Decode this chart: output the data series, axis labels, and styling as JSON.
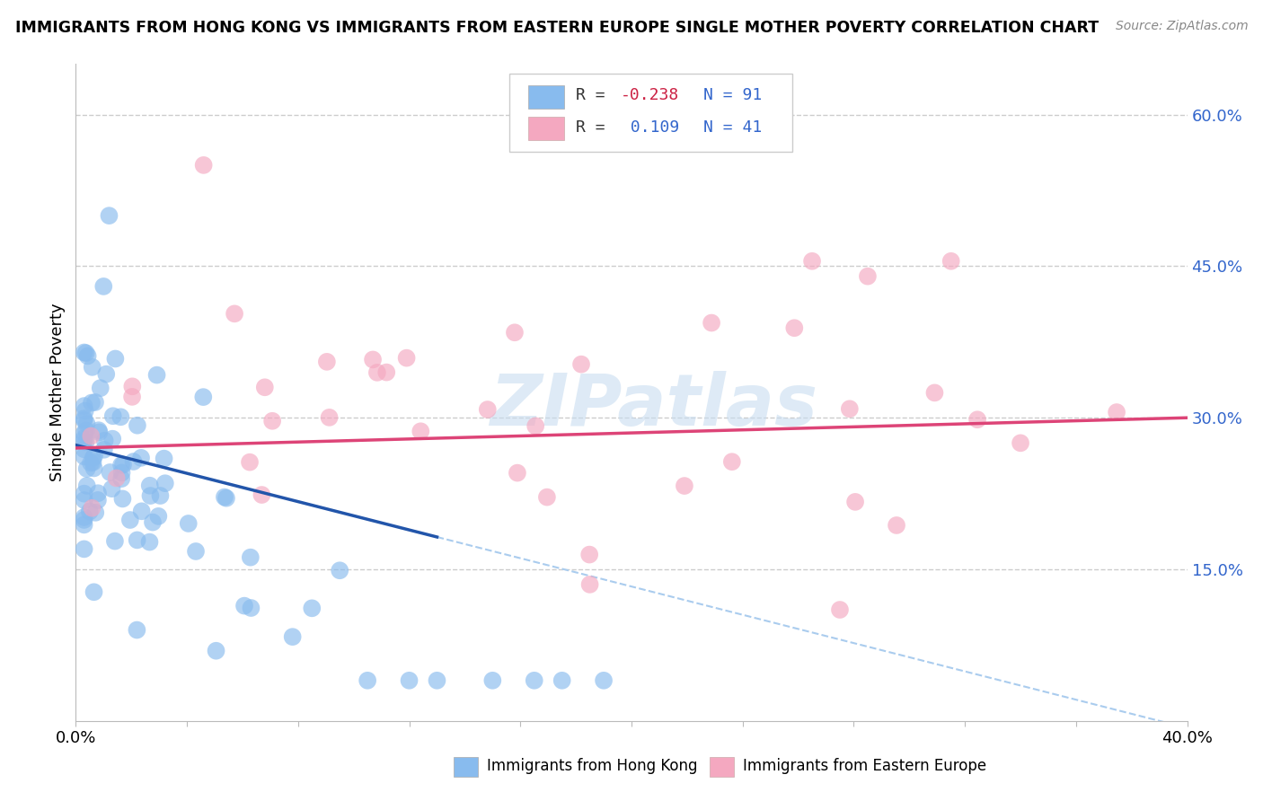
{
  "title": "IMMIGRANTS FROM HONG KONG VS IMMIGRANTS FROM EASTERN EUROPE SINGLE MOTHER POVERTY CORRELATION CHART",
  "source": "Source: ZipAtlas.com",
  "ylabel": "Single Mother Poverty",
  "y_tick_labels": [
    "15.0%",
    "30.0%",
    "45.0%",
    "60.0%"
  ],
  "y_tick_values": [
    0.15,
    0.3,
    0.45,
    0.6
  ],
  "x_tick_labels": [
    "0.0%",
    "",
    "",
    "",
    "",
    "",
    "",
    "",
    "",
    "",
    "40.0%"
  ],
  "xlim": [
    0.0,
    0.4
  ],
  "ylim": [
    0.0,
    0.65
  ],
  "r_hk": -0.238,
  "n_hk": 91,
  "r_ee": 0.109,
  "n_ee": 41,
  "color_hk": "#88BBEE",
  "color_ee": "#F4A8C0",
  "line_color_hk": "#2255AA",
  "line_color_ee": "#DD4477",
  "line_color_dashed": "#AACCEE",
  "watermark": "ZIPatlas",
  "legend_label_hk": "Immigrants from Hong Kong",
  "legend_label_ee": "Immigrants from Eastern Europe"
}
